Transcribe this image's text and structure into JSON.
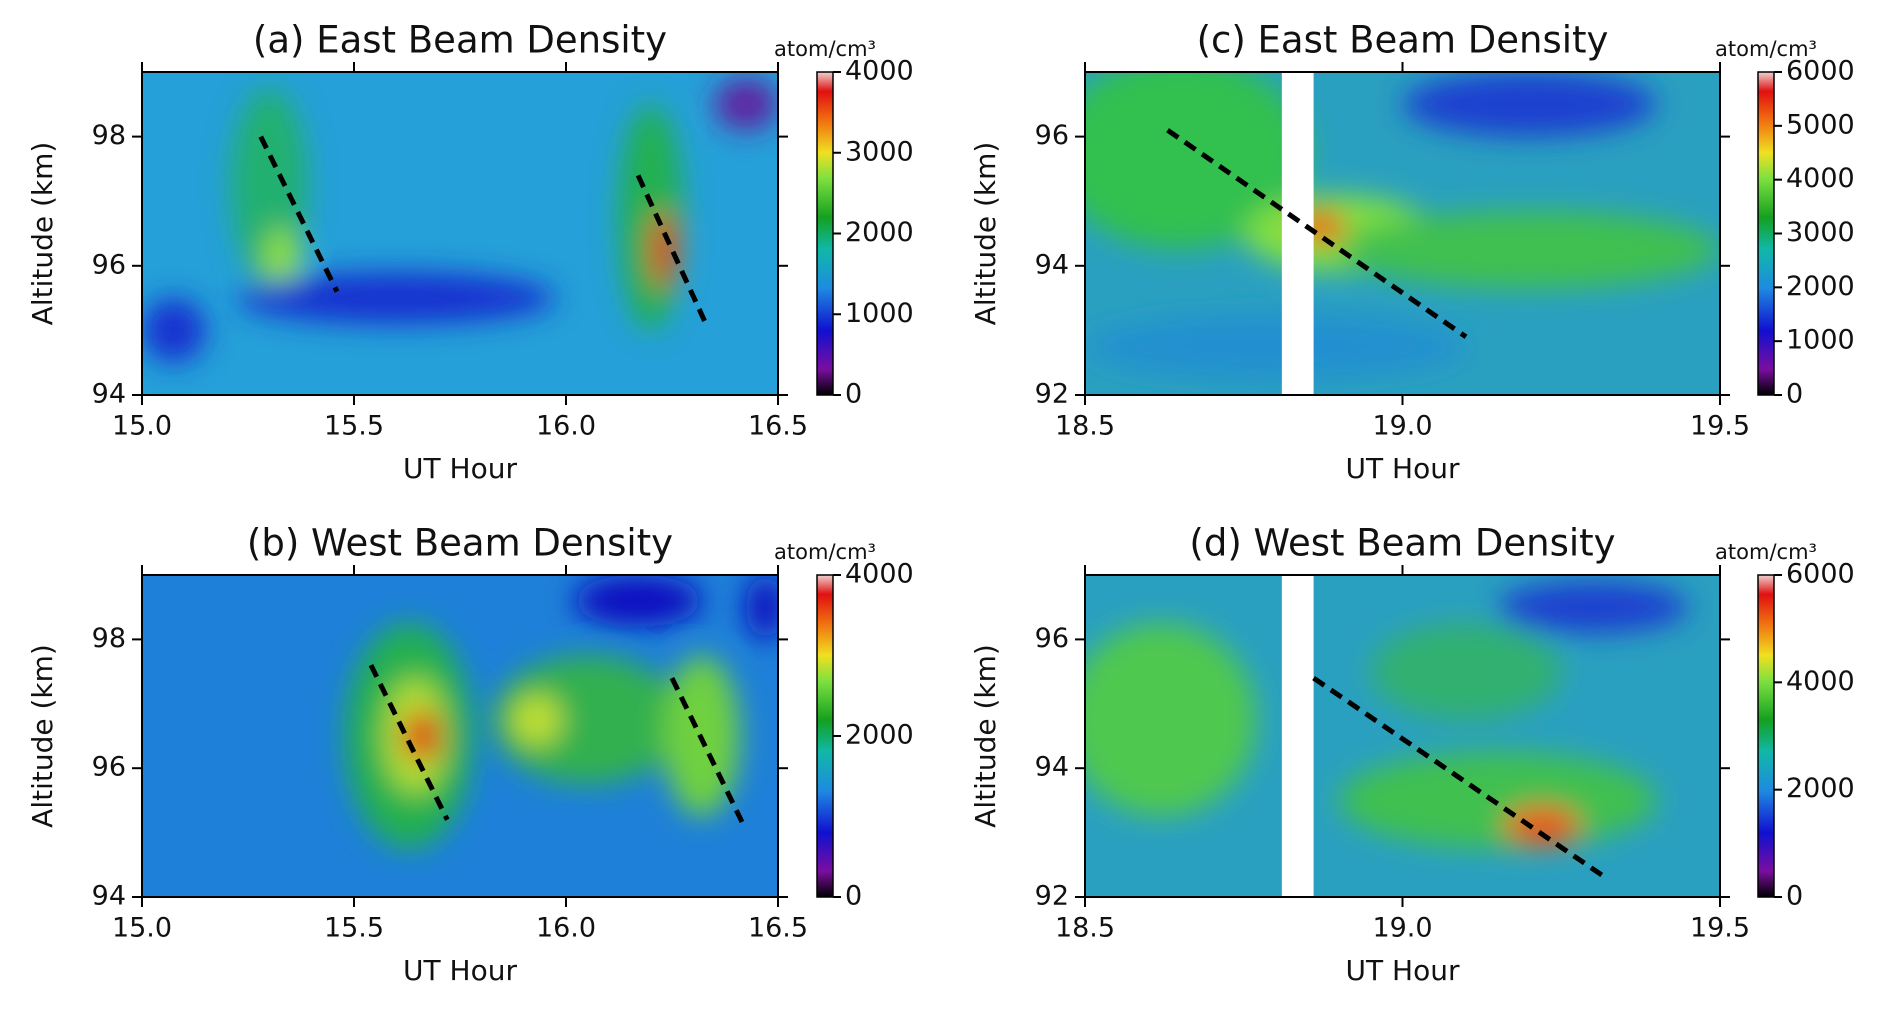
{
  "chart_data": [
    {
      "type": "contour",
      "title": "(a)  East Beam Density",
      "xlabel": "UT Hour",
      "ylabel": "Altitude (km)",
      "xlim": [
        15,
        16.5
      ],
      "xticks": [
        {
          "value": 15,
          "label": "15.0"
        },
        15.5,
        {
          "value": 16,
          "label": "16.0"
        },
        16.5
      ],
      "ylim": [
        94,
        99
      ],
      "yticks": [
        94,
        96,
        98
      ],
      "colorbar": {
        "label": "atom/cm³",
        "clim": [
          0,
          4000
        ],
        "ticks": [
          0,
          1000,
          2000,
          3000,
          4000
        ]
      },
      "lines": [
        {
          "x": [
            15.28,
            15.46
          ],
          "y": [
            98.0,
            95.6
          ]
        },
        {
          "x": [
            16.17,
            16.33
          ],
          "y": [
            97.4,
            95.1
          ]
        }
      ]
    },
    {
      "type": "contour",
      "title": "(b)  West Beam Density",
      "xlabel": "UT Hour",
      "ylabel": "Altitude (km)",
      "xlim": [
        15,
        16.5
      ],
      "xticks": [
        {
          "value": 15,
          "label": "15.0"
        },
        15.5,
        {
          "value": 16,
          "label": "16.0"
        },
        16.5
      ],
      "ylim": [
        94,
        99
      ],
      "yticks": [
        94,
        96,
        98
      ],
      "colorbar": {
        "label": "atom/cm³",
        "clim": [
          0,
          4000
        ],
        "ticks": [
          0,
          2000,
          4000
        ]
      },
      "lines": [
        {
          "x": [
            15.54,
            15.72
          ],
          "y": [
            97.6,
            95.2
          ]
        },
        {
          "x": [
            16.25,
            16.42
          ],
          "y": [
            97.4,
            95.1
          ]
        }
      ]
    },
    {
      "type": "contour",
      "title": "(c)  East Beam Density",
      "xlabel": "UT Hour",
      "ylabel": "Altitude (km)",
      "xlim": [
        18.5,
        19.5
      ],
      "xticks": [
        18.5,
        {
          "value": 19,
          "label": "19.0"
        },
        19.5
      ],
      "ylim": [
        92,
        97
      ],
      "yticks": [
        92,
        94,
        96
      ],
      "colorbar": {
        "label": "atom/cm³",
        "clim": [
          0,
          6000
        ],
        "ticks": [
          0,
          1000,
          2000,
          3000,
          4000,
          5000,
          6000
        ]
      },
      "lines": [
        {
          "x": [
            18.63,
            19.1
          ],
          "y": [
            96.1,
            92.9
          ]
        }
      ]
    },
    {
      "type": "contour",
      "title": "(d)  West Beam Density",
      "xlabel": "UT Hour",
      "ylabel": "Altitude (km)",
      "xlim": [
        18.5,
        19.5
      ],
      "xticks": [
        18.5,
        {
          "value": 19,
          "label": "19.0"
        },
        19.5
      ],
      "ylim": [
        92,
        97
      ],
      "yticks": [
        92,
        94,
        96
      ],
      "colorbar": {
        "label": "atom/cm³",
        "clim": [
          0,
          6000
        ],
        "ticks": [
          0,
          2000,
          4000,
          6000
        ]
      },
      "lines": [
        {
          "x": [
            18.86,
            19.32
          ],
          "y": [
            95.4,
            92.3
          ]
        }
      ]
    }
  ]
}
